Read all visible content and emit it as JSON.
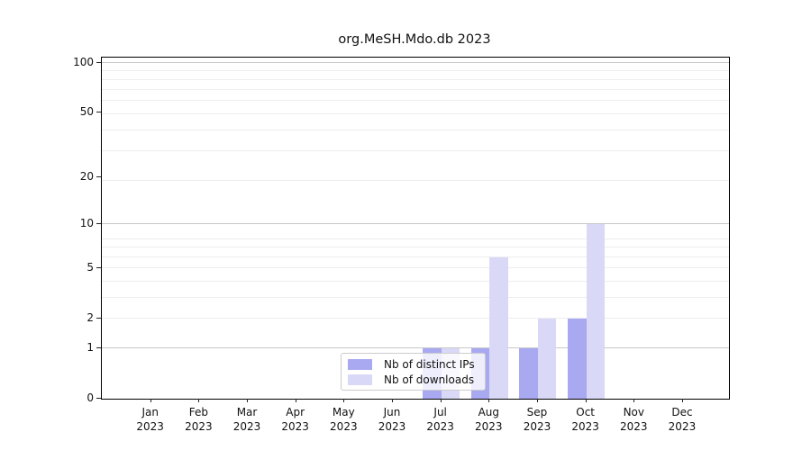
{
  "chart_data": {
    "type": "bar",
    "title": "org.MeSH.Mdo.db 2023",
    "categories": [
      "Jan",
      "Feb",
      "Mar",
      "Apr",
      "May",
      "Jun",
      "Jul",
      "Aug",
      "Sep",
      "Oct",
      "Nov",
      "Dec"
    ],
    "year_label": "2023",
    "series": [
      {
        "name": "Nb of distinct IPs",
        "color": "#a9a9f1",
        "values": [
          0,
          0,
          0,
          0,
          0,
          0,
          1,
          1,
          1,
          2,
          0,
          0
        ]
      },
      {
        "name": "Nb of downloads",
        "color": "#d9d9f7",
        "values": [
          0,
          0,
          0,
          0,
          0,
          0,
          1,
          6,
          2,
          10,
          0,
          0
        ]
      }
    ],
    "xlabel": "",
    "ylabel": "",
    "yticks": [
      0,
      1,
      2,
      5,
      10,
      20,
      50,
      100
    ],
    "ylim": [
      0,
      108
    ],
    "scale": "log10(1+y)",
    "grid": {
      "major_values": [
        1,
        10,
        100
      ],
      "minor_shifted_values": [
        3,
        4,
        5,
        6,
        7,
        8,
        9,
        20,
        30,
        40,
        50,
        60,
        70,
        80,
        90
      ],
      "major_color": "#c8c8c8",
      "minor_color": "#ededed"
    },
    "legend_position": "lower center"
  }
}
